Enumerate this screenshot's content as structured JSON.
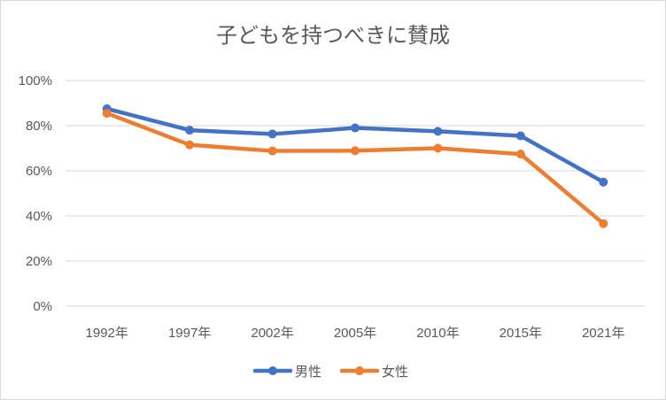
{
  "chart_data": {
    "type": "line",
    "title": "子どもを持つべきに賛成",
    "categories": [
      "1992年",
      "1997年",
      "2002年",
      "2005年",
      "2010年",
      "2015年",
      "2021年"
    ],
    "y_ticks": [
      "0%",
      "20%",
      "40%",
      "60%",
      "80%",
      "100%"
    ],
    "ylim": [
      0,
      100
    ],
    "y_unit": "%",
    "grid": true,
    "legend_position": "bottom",
    "series": [
      {
        "name": "男性",
        "color": "#4472c4",
        "values": [
          87.5,
          78,
          76.3,
          79,
          77.5,
          75.5,
          55
        ]
      },
      {
        "name": "女性",
        "color": "#ed7d31",
        "values": [
          85.5,
          71.5,
          68.8,
          68.9,
          70,
          67.4,
          36.6
        ]
      }
    ]
  }
}
